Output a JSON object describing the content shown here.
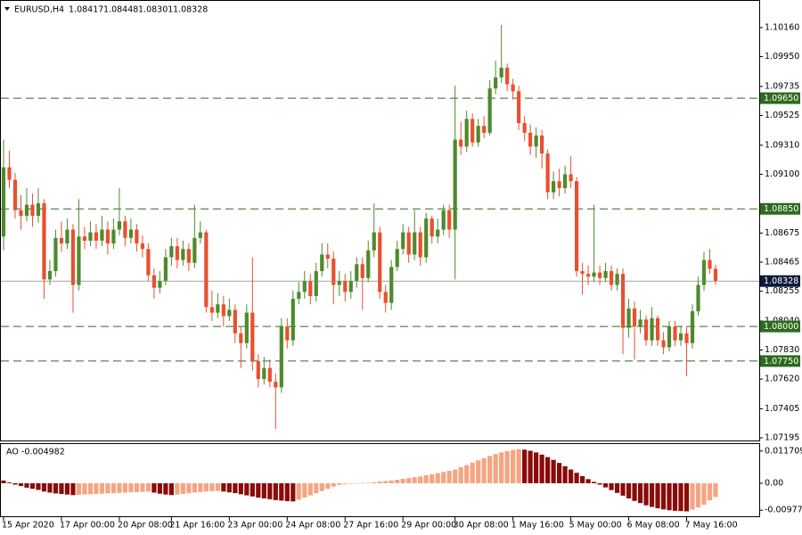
{
  "chart_data": [
    {
      "type": "candlestick",
      "title": "EURUSD,H4",
      "categories": [
        "15 Apr 2020",
        null,
        null,
        null,
        null,
        null,
        null,
        null,
        null,
        null,
        "17 Apr 00:00",
        null,
        null,
        null,
        null,
        null,
        null,
        null,
        null,
        null,
        "20 Apr 08:00",
        null,
        null,
        null,
        null,
        null,
        null,
        null,
        null,
        "21 Apr 16:00",
        null,
        null,
        null,
        null,
        null,
        null,
        null,
        null,
        null,
        "23 Apr 00:00",
        null,
        null,
        null,
        null,
        null,
        null,
        null,
        null,
        null,
        "24 Apr 08:00",
        null,
        null,
        null,
        null,
        null,
        null,
        null,
        null,
        null,
        "27 Apr 16:00",
        null,
        null,
        null,
        null,
        null,
        null,
        null,
        null,
        null,
        "29 Apr 00:00",
        null,
        null,
        null,
        null,
        null,
        null,
        null,
        null,
        "30 Apr 08:00",
        null,
        null,
        null,
        null,
        null,
        null,
        null,
        null,
        null,
        "1 May 16:00",
        null,
        null,
        null,
        null,
        null,
        null,
        null,
        null,
        null,
        "5 May 00:00",
        null,
        null,
        null,
        null,
        null,
        null,
        null,
        null,
        null,
        "6 May 08:00",
        null,
        null,
        null,
        null,
        null,
        null,
        null,
        null,
        null,
        "7 May 16:00",
        null,
        null,
        null,
        null,
        null
      ],
      "open": [
        1.0865,
        1.0915,
        1.0906,
        1.0884,
        1.088,
        1.0888,
        1.088,
        1.0889,
        1.0834,
        1.084,
        1.0864,
        1.086,
        1.087,
        1.083,
        1.0865,
        1.0862,
        1.0868,
        1.0862,
        1.087,
        1.086,
        1.087,
        1.0876,
        1.0864,
        1.087,
        1.086,
        1.0856,
        1.0837,
        1.0828,
        1.0833,
        1.085,
        1.0858,
        1.0848,
        1.0856,
        1.0846,
        1.0864,
        1.0868,
        1.0814,
        1.081,
        1.0816,
        1.08075,
        1.0812,
        1.0795,
        1.0788,
        1.081,
        1.0775,
        1.0762,
        1.077,
        1.076,
        1.0756,
        1.08,
        1.079,
        1.082,
        1.0825,
        1.0833,
        1.0822,
        1.084,
        1.0852,
        1.0849,
        1.083,
        1.0833,
        1.0825,
        1.0833,
        1.0845,
        1.0835,
        1.0855,
        1.0868,
        1.0825,
        1.0817,
        1.0843,
        1.0856,
        1.0868,
        1.0852,
        1.0868,
        1.085,
        1.0878,
        1.0865,
        1.087,
        1.0884,
        1.087,
        1.0935,
        1.093,
        1.095,
        1.0933,
        1.0945,
        1.094,
        1.0972,
        1.098,
        1.0987,
        1.0975,
        1.097,
        1.0947,
        1.094,
        1.093,
        1.0938,
        1.0925,
        1.0897,
        1.0905,
        1.09,
        1.091,
        1.0905,
        1.084,
        1.0838,
        1.0836,
        1.0839,
        1.0835,
        1.084,
        1.083,
        1.0838,
        1.0799,
        1.0813,
        1.08,
        1.0805,
        1.079,
        1.0806,
        1.079,
        1.0785,
        1.08,
        1.079,
        1.0795,
        1.0788,
        1.0811,
        1.083,
        1.0848,
        1.08417
      ],
      "high": [
        1.0935,
        1.0927,
        1.0911,
        1.0895,
        1.09,
        1.0896,
        1.09,
        1.0892,
        1.0848,
        1.087,
        1.0876,
        1.0878,
        1.0874,
        1.0892,
        1.0872,
        1.0876,
        1.0874,
        1.088,
        1.0876,
        1.0878,
        1.09,
        1.088,
        1.0878,
        1.0874,
        1.0866,
        1.086,
        1.0842,
        1.084,
        1.0856,
        1.0864,
        1.0864,
        1.0862,
        1.086,
        1.0888,
        1.0876,
        1.087,
        1.0826,
        1.0824,
        1.0822,
        1.082,
        1.0816,
        1.08,
        1.0816,
        1.085,
        1.078,
        1.0778,
        1.0776,
        1.0766,
        1.0806,
        1.0806,
        1.0826,
        1.0832,
        1.084,
        1.0838,
        1.0846,
        1.086,
        1.086,
        1.0854,
        1.084,
        1.0838,
        1.084,
        1.085,
        1.085,
        1.0862,
        1.0889,
        1.0872,
        1.083,
        1.0848,
        1.0862,
        1.0874,
        1.0872,
        1.0884,
        1.0872,
        1.0882,
        1.088,
        1.0878,
        1.0888,
        1.0888,
        1.0974,
        1.0948,
        1.0956,
        1.0954,
        1.095,
        1.0952,
        1.0978,
        1.0992,
        1.1018,
        1.099,
        1.0979,
        1.0974,
        1.0952,
        1.0946,
        1.0944,
        1.0942,
        1.0928,
        1.0912,
        1.0914,
        1.0916,
        1.0923,
        1.0908,
        1.0846,
        1.0844,
        1.0888,
        1.0844,
        1.0846,
        1.0844,
        1.0842,
        1.0842,
        1.082,
        1.0818,
        1.0812,
        1.0808,
        1.0814,
        1.0808,
        1.0796,
        1.0804,
        1.0804,
        1.08,
        1.08,
        1.0816,
        1.0836,
        1.0854,
        1.0856,
        1.08448
      ],
      "low": [
        1.0855,
        1.09,
        1.0878,
        1.087,
        1.0876,
        1.0872,
        1.0875,
        1.082,
        1.083,
        1.0836,
        1.0854,
        1.0856,
        1.081,
        1.0826,
        1.0856,
        1.0858,
        1.0856,
        1.0858,
        1.0852,
        1.0856,
        1.0866,
        1.0858,
        1.086,
        1.0854,
        1.085,
        1.0833,
        1.082,
        1.0824,
        1.083,
        1.0844,
        1.0842,
        1.0844,
        1.084,
        1.0842,
        1.086,
        1.081,
        1.0804,
        1.0806,
        1.08,
        1.0804,
        1.0788,
        1.077,
        1.0784,
        1.0768,
        1.0756,
        1.0758,
        1.0756,
        1.0726,
        1.0752,
        1.0784,
        1.0786,
        1.0816,
        1.082,
        1.0816,
        1.0818,
        1.0836,
        1.0842,
        1.0816,
        1.0822,
        1.0818,
        1.082,
        1.0828,
        1.0812,
        1.0832,
        1.085,
        1.082,
        1.081,
        1.0812,
        1.084,
        1.0852,
        1.0846,
        1.0848,
        1.0844,
        1.0846,
        1.086,
        1.086,
        1.0866,
        1.0864,
        1.0834,
        1.0924,
        1.0926,
        1.093,
        1.093,
        1.0936,
        1.0938,
        1.0968,
        1.0976,
        1.097,
        1.0964,
        1.0942,
        1.0934,
        1.0924,
        1.0922,
        1.0914,
        1.0892,
        1.0892,
        1.0894,
        1.0896,
        1.09,
        1.0836,
        1.0823,
        1.083,
        1.0832,
        1.083,
        1.0832,
        1.0826,
        1.0826,
        1.078,
        1.0792,
        1.0776,
        1.0795,
        1.0786,
        1.0786,
        1.0786,
        1.078,
        1.0782,
        1.0786,
        1.0786,
        1.0764,
        1.0784,
        1.0808,
        1.0826,
        1.0838,
        1.08301
      ],
      "close": [
        1.0915,
        1.0906,
        1.0884,
        1.088,
        1.0888,
        1.088,
        1.0889,
        1.0834,
        1.084,
        1.0864,
        1.086,
        1.087,
        1.083,
        1.0865,
        1.0862,
        1.0868,
        1.0862,
        1.087,
        1.086,
        1.087,
        1.0876,
        1.0864,
        1.087,
        1.086,
        1.0856,
        1.0837,
        1.0828,
        1.0833,
        1.085,
        1.0858,
        1.0848,
        1.0856,
        1.0846,
        1.0864,
        1.0868,
        1.0814,
        1.081,
        1.0816,
        1.08075,
        1.0812,
        1.0795,
        1.0788,
        1.081,
        1.0775,
        1.0762,
        1.077,
        1.076,
        1.0756,
        1.08,
        1.079,
        1.082,
        1.0825,
        1.0833,
        1.0822,
        1.084,
        1.0852,
        1.0849,
        1.083,
        1.0833,
        1.0825,
        1.0833,
        1.0845,
        1.0835,
        1.0855,
        1.0868,
        1.0825,
        1.0817,
        1.0843,
        1.0856,
        1.0868,
        1.0852,
        1.0868,
        1.085,
        1.0878,
        1.0865,
        1.087,
        1.0884,
        1.087,
        1.0935,
        1.093,
        1.095,
        1.0933,
        1.0945,
        1.094,
        1.0972,
        1.098,
        1.0987,
        1.0975,
        1.097,
        1.0947,
        1.094,
        1.093,
        1.0938,
        1.0925,
        1.0897,
        1.0905,
        1.09,
        1.091,
        1.0905,
        1.084,
        1.0838,
        1.0836,
        1.0839,
        1.0835,
        1.084,
        1.083,
        1.0838,
        1.0799,
        1.0813,
        1.08,
        1.0805,
        1.079,
        1.0806,
        1.079,
        1.0785,
        1.08,
        1.079,
        1.0795,
        1.0788,
        1.0811,
        1.083,
        1.0848,
        1.08417,
        1.08328
      ],
      "up_color": "#4e8a2c",
      "down_color": "#e8502f",
      "ylim": [
        1.07176,
        1.10353
      ],
      "yticks": [
        {
          "value": 1.1016,
          "label": "1.10160"
        },
        {
          "value": 1.0995,
          "label": "1.09950"
        },
        1.09735,
        1.09525,
        {
          "value": 1.0931,
          "label": "1.09310"
        },
        {
          "value": 1.091,
          "label": "1.09100"
        },
        1.08675,
        1.08465,
        1.08255,
        {
          "value": 1.0804,
          "label": "1.08040"
        },
        {
          "value": 1.0783,
          "label": "1.07830"
        },
        {
          "value": 1.0762,
          "label": "1.07620"
        },
        1.07405,
        1.07195
      ],
      "levels": [
        {
          "value": 1.0965,
          "label": "1.09650"
        },
        {
          "value": 1.0885,
          "label": "1.08850"
        },
        {
          "value": 1.08,
          "label": "1.08000"
        },
        {
          "value": 1.0775,
          "label": "1.07750"
        }
      ],
      "level_color": "#2d6a1e"
    },
    {
      "type": "bar",
      "title": "AO",
      "values": [
        0.001,
        0.0003,
        -0.0005,
        -0.001,
        -0.0016,
        -0.002,
        -0.0024,
        -0.003,
        -0.0034,
        -0.0037,
        -0.0039,
        -0.0041,
        -0.0043,
        -0.0042,
        -0.0041,
        -0.004,
        -0.0039,
        -0.0038,
        -0.0037,
        -0.0036,
        -0.0035,
        -0.0034,
        -0.0033,
        -0.0032,
        -0.0031,
        -0.003,
        -0.0034,
        -0.0038,
        -0.0041,
        -0.0043,
        -0.0041,
        -0.0039,
        -0.0036,
        -0.0034,
        -0.0032,
        -0.003,
        -0.0029,
        -0.0028,
        -0.003,
        -0.0033,
        -0.0036,
        -0.004,
        -0.0044,
        -0.0048,
        -0.0052,
        -0.0055,
        -0.0058,
        -0.0061,
        -0.0063,
        -0.0065,
        -0.0066,
        -0.006,
        -0.0052,
        -0.0044,
        -0.0036,
        -0.0028,
        -0.002,
        -0.0012,
        -0.0006,
        -0.0003,
        -0.0002,
        -0.0001,
        0.0001,
        0.0002,
        0.0004,
        0.0006,
        0.0008,
        0.001,
        0.0013,
        0.0016,
        0.0019,
        0.0022,
        0.0025,
        0.0029,
        0.0033,
        0.0037,
        0.0041,
        0.0045,
        0.005,
        0.0058,
        0.0066,
        0.0075,
        0.0083,
        0.0091,
        0.0099,
        0.0106,
        0.0112,
        0.0117,
        0.0121,
        0.0124,
        0.0122,
        0.0118,
        0.0112,
        0.0104,
        0.0095,
        0.0085,
        0.0074,
        0.0062,
        0.005,
        0.0038,
        0.0026,
        0.0015,
        0.0005,
        -0.0005,
        -0.0015,
        -0.0025,
        -0.0035,
        -0.0045,
        -0.0055,
        -0.0064,
        -0.0072,
        -0.008,
        -0.0086,
        -0.0091,
        -0.0095,
        -0.0098,
        -0.01,
        -0.0101,
        -0.0102,
        -0.0096,
        -0.0088,
        -0.0078,
        -0.0062,
        -0.004982
      ],
      "up_color": "#f4a582",
      "down_color": "#8b0a0a",
      "ylim": [
        -0.01199,
        0.01424
      ],
      "yticks": [
        0.011709,
        {
          "value": 0,
          "label": "0.00"
        },
        -0.009776
      ]
    }
  ]
}
